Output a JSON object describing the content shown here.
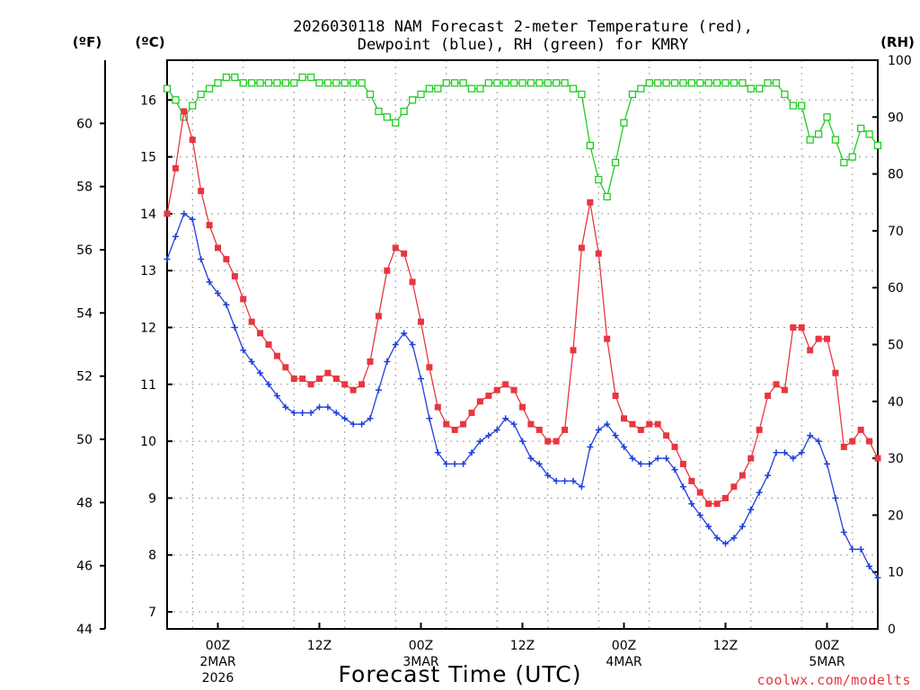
{
  "chart_data": {
    "type": "line",
    "title_line1": "2026030118 NAM Forecast 2-meter Temperature (red),",
    "title_line2": "Dewpoint (blue), RH (green) for KMRY",
    "xlabel": "Forecast Time (UTC)",
    "credit": "coolwx.com/modelts",
    "axis_units": {
      "fahrenheit": "(ºF)",
      "celsius": "(ºC)",
      "rh": "(RH)"
    },
    "x_range_hours": [
      0,
      84
    ],
    "c_range": [
      6.7,
      16.7
    ],
    "f_range": [
      44,
      62
    ],
    "rh_range": [
      0,
      100
    ],
    "left_f_ticks": [
      "44",
      "46",
      "48",
      "50",
      "52",
      "54",
      "56",
      "58",
      "60"
    ],
    "left_c_ticks": [
      "7",
      "8",
      "9",
      "10",
      "11",
      "12",
      "13",
      "14",
      "15",
      "16"
    ],
    "right_rh_ticks": [
      "0",
      "10",
      "20",
      "30",
      "40",
      "50",
      "60",
      "70",
      "80",
      "90",
      "100"
    ],
    "x_ticks": [
      {
        "label": "00Z",
        "sub1": "2MAR",
        "sub2": "2026"
      },
      {
        "label": "12Z",
        "sub1": "",
        "sub2": ""
      },
      {
        "label": "00Z",
        "sub1": "3MAR",
        "sub2": ""
      },
      {
        "label": "12Z",
        "sub1": "",
        "sub2": ""
      },
      {
        "label": "00Z",
        "sub1": "4MAR",
        "sub2": ""
      },
      {
        "label": "12Z",
        "sub1": "",
        "sub2": ""
      },
      {
        "label": "00Z",
        "sub1": "5MAR",
        "sub2": ""
      }
    ],
    "series": [
      {
        "name": "Temperature",
        "unit": "C",
        "color": "#e8363f",
        "values": [
          14.0,
          14.8,
          15.8,
          15.3,
          14.4,
          13.8,
          13.4,
          13.2,
          12.9,
          12.5,
          12.1,
          11.9,
          11.7,
          11.5,
          11.3,
          11.1,
          11.1,
          11.0,
          11.1,
          11.2,
          11.1,
          11.0,
          10.9,
          11.0,
          11.4,
          12.2,
          13.0,
          13.4,
          13.3,
          12.8,
          12.1,
          11.3,
          10.6,
          10.3,
          10.2,
          10.3,
          10.5,
          10.7,
          10.8,
          10.9,
          11.0,
          10.9,
          10.6,
          10.3,
          10.2,
          10.0,
          10.0,
          10.2,
          11.6,
          13.4,
          14.2,
          13.3,
          11.8,
          10.8,
          10.4,
          10.3,
          10.2,
          10.3,
          10.3,
          10.1,
          9.9,
          9.6,
          9.3,
          9.1,
          8.9,
          8.9,
          9.0,
          9.2,
          9.4,
          9.7,
          10.2,
          10.8,
          11.0,
          10.9,
          12.0,
          12.0,
          11.6,
          11.8,
          11.8,
          11.2,
          9.9,
          10.0,
          10.2,
          10.0,
          9.7
        ]
      },
      {
        "name": "Dewpoint",
        "unit": "C",
        "color": "#1f3fdb",
        "values": [
          13.2,
          13.6,
          14.0,
          13.9,
          13.2,
          12.8,
          12.6,
          12.4,
          12.0,
          11.6,
          11.4,
          11.2,
          11.0,
          10.8,
          10.6,
          10.5,
          10.5,
          10.5,
          10.6,
          10.6,
          10.5,
          10.4,
          10.3,
          10.3,
          10.4,
          10.9,
          11.4,
          11.7,
          11.9,
          11.7,
          11.1,
          10.4,
          9.8,
          9.6,
          9.6,
          9.6,
          9.8,
          10.0,
          10.1,
          10.2,
          10.4,
          10.3,
          10.0,
          9.7,
          9.6,
          9.4,
          9.3,
          9.3,
          9.3,
          9.2,
          9.9,
          10.2,
          10.3,
          10.1,
          9.9,
          9.7,
          9.6,
          9.6,
          9.7,
          9.7,
          9.5,
          9.2,
          8.9,
          8.7,
          8.5,
          8.3,
          8.2,
          8.3,
          8.5,
          8.8,
          9.1,
          9.4,
          9.8,
          9.8,
          9.7,
          9.8,
          10.1,
          10.0,
          9.6,
          9.0,
          8.4,
          8.1,
          8.1,
          7.8,
          7.6
        ]
      },
      {
        "name": "RH",
        "unit": "%",
        "color": "#20cc20",
        "values": [
          95,
          93,
          90,
          92,
          94,
          95,
          96,
          97,
          97,
          96,
          96,
          96,
          96,
          96,
          96,
          96,
          97,
          97,
          96,
          96,
          96,
          96,
          96,
          96,
          94,
          91,
          90,
          89,
          91,
          93,
          94,
          95,
          95,
          96,
          96,
          96,
          95,
          95,
          96,
          96,
          96,
          96,
          96,
          96,
          96,
          96,
          96,
          96,
          95,
          94,
          85,
          79,
          76,
          82,
          89,
          94,
          95,
          96,
          96,
          96,
          96,
          96,
          96,
          96,
          96,
          96,
          96,
          96,
          96,
          95,
          95,
          96,
          96,
          94,
          92,
          92,
          86,
          87,
          90,
          86,
          82,
          83,
          88,
          87,
          85
        ]
      }
    ]
  }
}
